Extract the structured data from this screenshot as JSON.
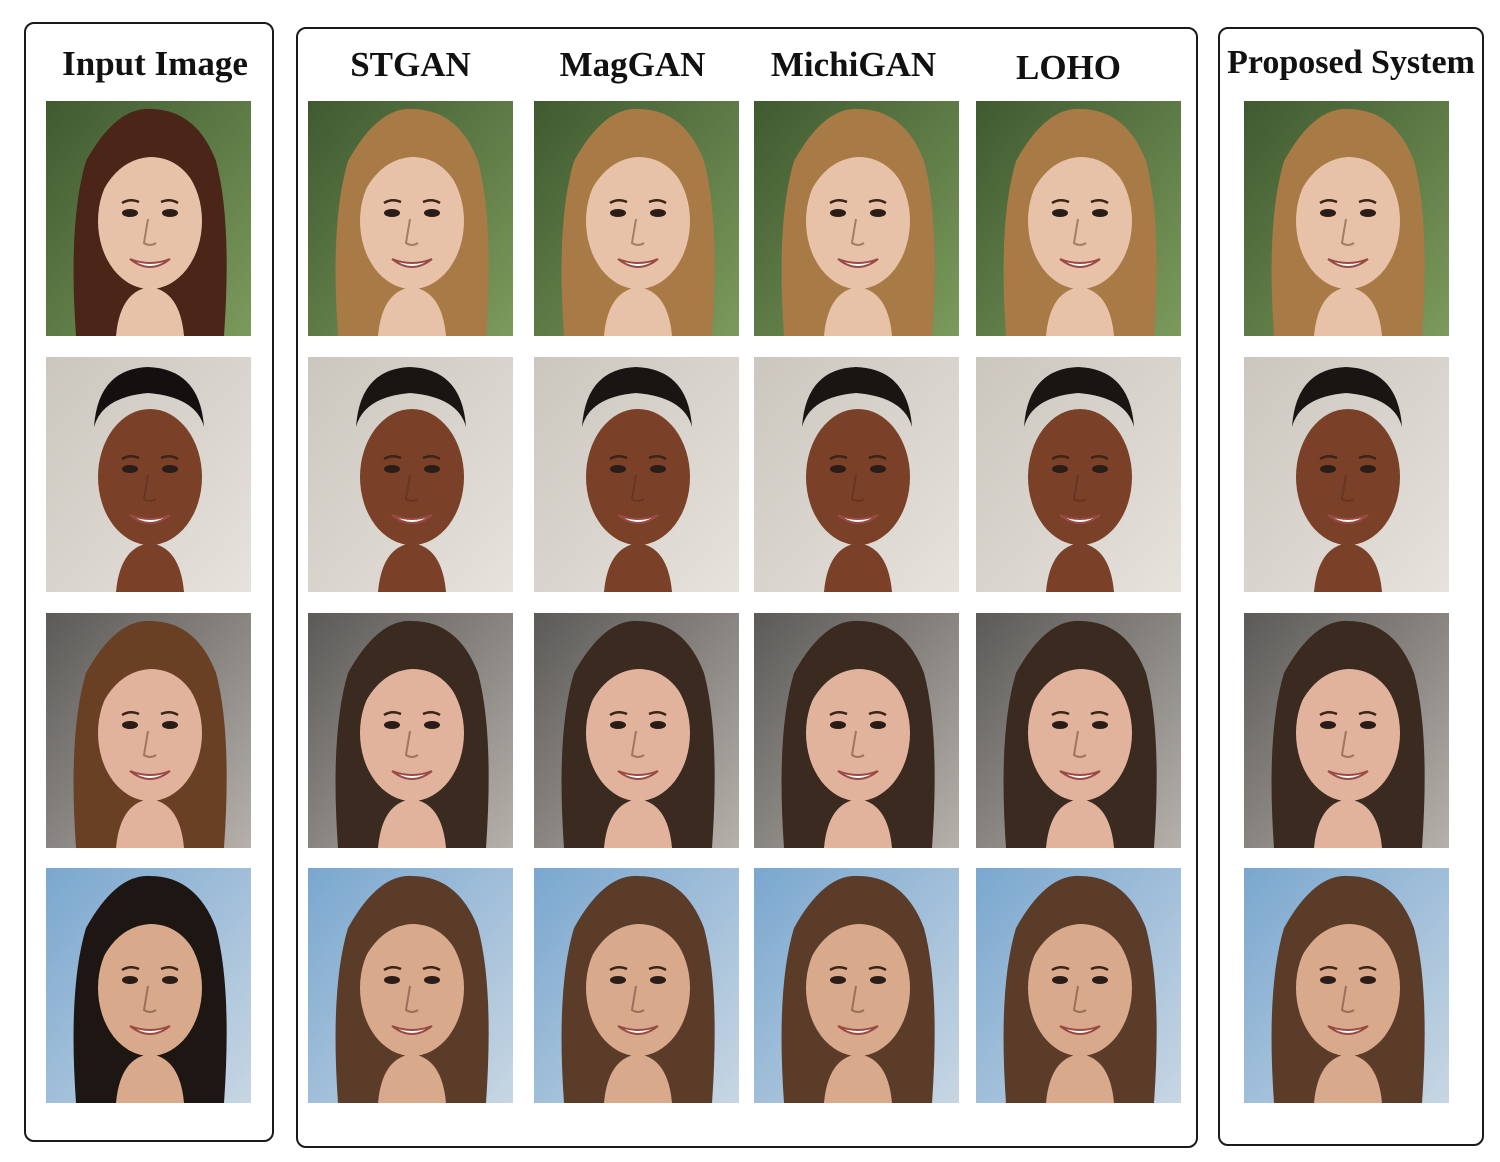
{
  "columns": [
    {
      "title": "Input Image"
    },
    {
      "title": "STGAN"
    },
    {
      "title": "MagGAN"
    },
    {
      "title": "MichiGAN"
    },
    {
      "title": "LOHO"
    },
    {
      "title": "Proposed System"
    }
  ],
  "rows": [
    {
      "bg_dark": "#3f5a30",
      "bg_light": "#7c9a5c",
      "skin": "#e8c2a8",
      "hair_input": "#4a2518",
      "hair_ref": "#a87a45"
    },
    {
      "bg_dark": "#cbc6be",
      "bg_light": "#e6e2dc",
      "skin": "#7a4128",
      "hair_input": "#141010",
      "hair_ref": "#1a1412"
    },
    {
      "bg_dark": "#5c5a58",
      "bg_light": "#b5b0aa",
      "skin": "#e2b39c",
      "hair_input": "#6a4024",
      "hair_ref": "#3a2a20"
    },
    {
      "bg_dark": "#7aa7cf",
      "bg_light": "#c7d6e3",
      "skin": "#d9a98c",
      "hair_input": "#1e1612",
      "hair_ref": "#5a3c28"
    }
  ]
}
